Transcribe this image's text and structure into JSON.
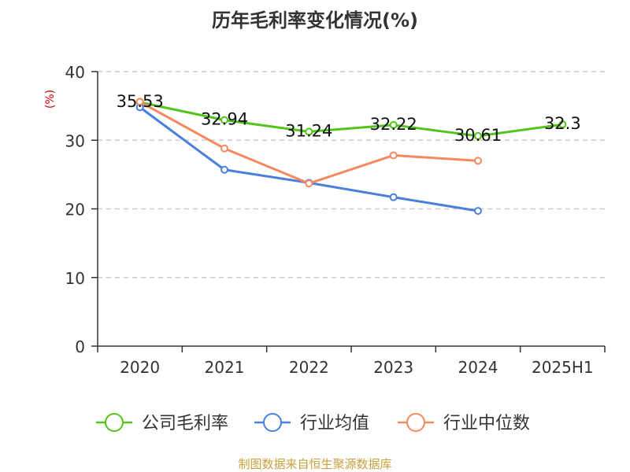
{
  "chart_data": {
    "type": "line",
    "title": "历年毛利率变化情况(%)",
    "ylabel": "(%)",
    "ylim": [
      0,
      40
    ],
    "yticks": [
      "0",
      "10",
      "20",
      "30",
      "40"
    ],
    "categories": [
      "2020",
      "2021",
      "2022",
      "2023",
      "2024",
      "2025H1"
    ],
    "grid": true,
    "legend_position": "bottom",
    "series": [
      {
        "name": "公司毛利率",
        "color": "#52c41a",
        "values": [
          35.53,
          32.94,
          31.24,
          32.22,
          30.61,
          32.3
        ],
        "labels": [
          "35.53",
          "32.94",
          "31.24",
          "32.22",
          "30.61",
          "32.3"
        ]
      },
      {
        "name": "行业均值",
        "color": "#4a7fdc",
        "values": [
          34.8,
          25.7,
          23.8,
          21.7,
          19.7,
          null
        ]
      },
      {
        "name": "行业中位数",
        "color": "#f4895f",
        "values": [
          35.6,
          28.8,
          23.7,
          27.8,
          27.0,
          null
        ]
      }
    ],
    "footer": "制图数据来自恒生聚源数据库"
  }
}
